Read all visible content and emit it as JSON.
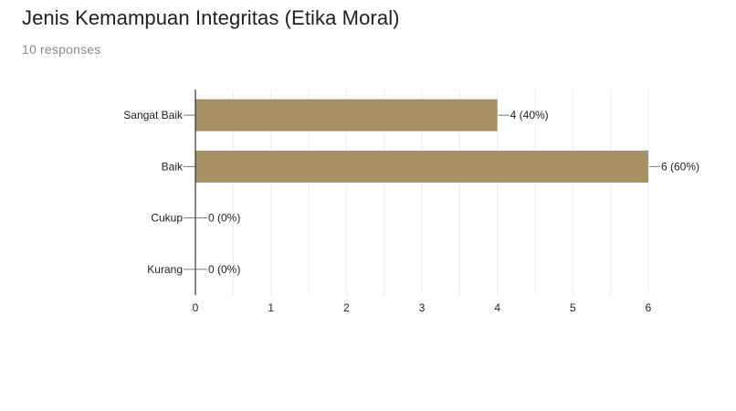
{
  "header": {
    "title": "Jenis Kemampuan Integritas (Etika Moral)",
    "responses": "10 responses"
  },
  "colors": {
    "bar": "#a79064",
    "grid": "#ececec",
    "axis": "#333333",
    "text": "#222222"
  },
  "chart_data": {
    "type": "bar",
    "orientation": "horizontal",
    "title": "",
    "xlabel": "",
    "ylabel": "",
    "categories": [
      "Sangat Baik",
      "Baik",
      "Cukup",
      "Kurang"
    ],
    "values": [
      4,
      6,
      0,
      0
    ],
    "data_labels": [
      "4 (40%)",
      "6 (60%)",
      "0 (0%)",
      "0 (0%)"
    ],
    "xlim": [
      0,
      6
    ],
    "x_ticks": [
      "0",
      "1",
      "2",
      "3",
      "4",
      "5",
      "6"
    ],
    "grid": true,
    "legend": "none"
  }
}
